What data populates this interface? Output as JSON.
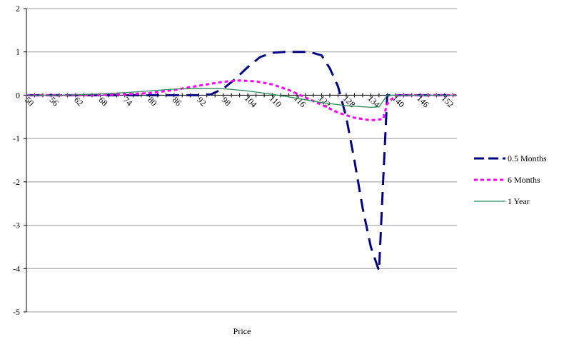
{
  "chart_data": {
    "type": "line",
    "xlabel": "Price",
    "ylabel": "",
    "title": "",
    "ylim": [
      -5,
      2
    ],
    "xlim": [
      50,
      155
    ],
    "y_ticks": [
      "2",
      "1",
      "0",
      "-1",
      "-2",
      "-3",
      "-4",
      "-5"
    ],
    "x_ticks": [
      "50",
      "56",
      "62",
      "68",
      "74",
      "80",
      "86",
      "92",
      "98",
      "104",
      "110",
      "116",
      "122",
      "128",
      "134",
      "140",
      "146",
      "152"
    ],
    "grid": "horizontal",
    "legend_position": "right",
    "series": [
      {
        "name": "0.5 Months",
        "color": "#000080",
        "style": "long-dash",
        "x": [
          50,
          92,
          95,
          98,
          101,
          104,
          107,
          110,
          113,
          116,
          119,
          122,
          124,
          126,
          128,
          130,
          132,
          134,
          136,
          137,
          138,
          140,
          155
        ],
        "y": [
          0,
          0,
          0.02,
          0.15,
          0.38,
          0.65,
          0.88,
          0.98,
          1.0,
          1.0,
          1.0,
          0.92,
          0.62,
          0.2,
          -0.5,
          -1.5,
          -2.6,
          -3.5,
          -4.05,
          -2.0,
          0,
          0,
          0
        ]
      },
      {
        "name": "6 Months",
        "color": "#ff00ff",
        "style": "dotted",
        "x": [
          50,
          62,
          68,
          74,
          80,
          86,
          92,
          98,
          102,
          106,
          110,
          114,
          118,
          122,
          126,
          130,
          134,
          137,
          138,
          140,
          155
        ],
        "y": [
          0,
          0,
          0.01,
          0.02,
          0.05,
          0.12,
          0.22,
          0.31,
          0.34,
          0.32,
          0.25,
          0.12,
          -0.05,
          -0.22,
          -0.4,
          -0.52,
          -0.58,
          -0.55,
          -0.2,
          0,
          0
        ]
      },
      {
        "name": "1 Year",
        "color": "#2e8b57",
        "style": "solid",
        "x": [
          50,
          56,
          62,
          68,
          74,
          80,
          86,
          92,
          98,
          104,
          110,
          116,
          122,
          128,
          134,
          136,
          138,
          140,
          155
        ],
        "y": [
          0,
          0,
          0.01,
          0.03,
          0.06,
          0.1,
          0.14,
          0.16,
          0.15,
          0.1,
          0.02,
          -0.07,
          -0.17,
          -0.24,
          -0.28,
          -0.27,
          0,
          0,
          0
        ]
      }
    ]
  }
}
